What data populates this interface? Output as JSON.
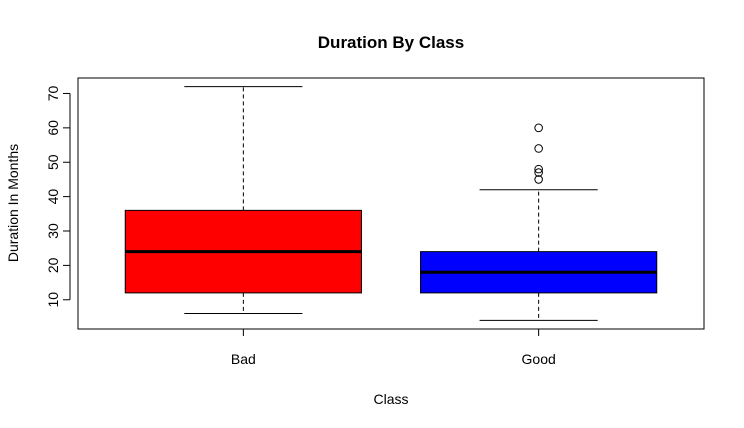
{
  "chart_data": {
    "type": "boxplot",
    "title": "Duration By Class",
    "xlabel": "Class",
    "ylabel": "Duration In Months",
    "categories": [
      "Bad",
      "Good"
    ],
    "yticks": [
      10,
      20,
      30,
      40,
      50,
      60,
      70
    ],
    "ylim": [
      1.5,
      74.5
    ],
    "grid": false,
    "boxes": [
      {
        "name": "Bad",
        "color": "#ff0000",
        "min": 6,
        "q1": 12,
        "median": 24,
        "q3": 36,
        "max": 72,
        "outliers": []
      },
      {
        "name": "Good",
        "color": "#0000ff",
        "min": 4,
        "q1": 12,
        "median": 18,
        "q3": 24,
        "max": 42,
        "outliers": [
          45,
          47,
          48,
          54,
          60
        ]
      }
    ]
  }
}
